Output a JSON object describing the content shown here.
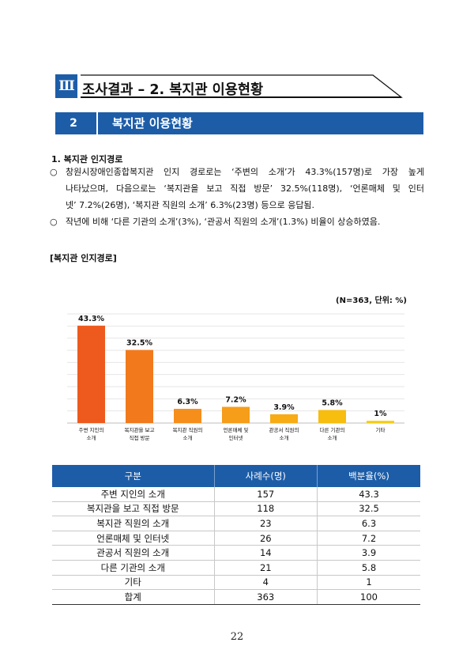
{
  "chapter": {
    "number": "Ⅲ",
    "title": "조사결과 – 2. 복지관 이용현황"
  },
  "section": {
    "number": "2",
    "title": "복지관 이용현황"
  },
  "subheading": "1. 복지관 인지경로",
  "bullets": [
    {
      "mark": "○",
      "lines": [
        "창원시장애인종합복지관 인지 경로로는 ‘주변의 소개’가 43.3%(157명)로 가장 높게",
        "나타났으며, 다음으로는 ‘복지관을 보고 직접 방문’ 32.5%(118명), ‘언론매체 및 인터",
        "넷’ 7.2%(26명), ‘복지관 직원의 소개’ 6.3%(23명) 등으로 응답됨."
      ]
    },
    {
      "mark": "○",
      "lines": [
        "작년에 비해 ‘다른 기관의 소개’(3%), ‘관공서 직원의 소개’(1.3%) 비율이 상승하였음."
      ]
    }
  ],
  "figure_title": "[복지관 인지경로]",
  "chart_note": "(N=363, 단위: %)",
  "chart_data": {
    "type": "bar",
    "categories": [
      [
        "주변 지인의",
        "소개"
      ],
      [
        "복지관을 보고",
        "직접 방문"
      ],
      [
        "복지관 직원의",
        "소개"
      ],
      [
        "언론매체 및",
        "인터넷"
      ],
      [
        "관공서 직원의",
        "소개"
      ],
      [
        "다른 기관의",
        "소개"
      ],
      [
        "기타"
      ]
    ],
    "values": [
      43.3,
      32.5,
      6.3,
      7.2,
      3.9,
      5.8,
      1
    ],
    "value_labels": [
      "43.3%",
      "32.5%",
      "6.3%",
      "7.2%",
      "3.9%",
      "5.8%",
      "1%"
    ],
    "bar_colors": [
      "#ee5a1e",
      "#f27a1d",
      "#f68e1b",
      "#f69d19",
      "#f7ab15",
      "#f7bd0f",
      "#f6cc11"
    ],
    "ylim": [
      0,
      45
    ],
    "grid": true,
    "title": "",
    "xlabel": "",
    "ylabel": ""
  },
  "table": {
    "headers": [
      "구분",
      "사례수(명)",
      "백분율(%)"
    ],
    "rows": [
      [
        "주변 지인의 소개",
        "157",
        "43.3"
      ],
      [
        "복지관을 보고 직접 방문",
        "118",
        "32.5"
      ],
      [
        "복지관 직원의 소개",
        "23",
        "6.3"
      ],
      [
        "언론매체 및 인터넷",
        "26",
        "7.2"
      ],
      [
        "관공서 직원의 소개",
        "14",
        "3.9"
      ],
      [
        "다른 기관의 소개",
        "21",
        "5.8"
      ],
      [
        "기타",
        "4",
        "1"
      ],
      [
        "합계",
        "363",
        "100"
      ]
    ]
  },
  "page_number": "22",
  "colors": {
    "accent": "#1d5da8"
  }
}
